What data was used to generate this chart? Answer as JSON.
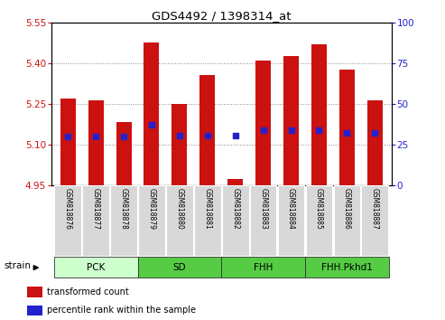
{
  "title": "GDS4492 / 1398314_at",
  "samples": [
    "GSM818876",
    "GSM818877",
    "GSM818878",
    "GSM818879",
    "GSM818880",
    "GSM818881",
    "GSM818882",
    "GSM818883",
    "GSM818884",
    "GSM818885",
    "GSM818886",
    "GSM818887"
  ],
  "red_values": [
    5.27,
    5.265,
    5.185,
    5.475,
    5.25,
    5.355,
    4.975,
    5.41,
    5.425,
    5.47,
    5.375,
    5.265
  ],
  "blue_values": [
    5.13,
    5.13,
    5.13,
    5.175,
    5.135,
    5.135,
    5.135,
    5.155,
    5.155,
    5.155,
    5.145,
    5.145
  ],
  "baseline": 4.95,
  "ylim_left": [
    4.95,
    5.55
  ],
  "ylim_right": [
    0,
    100
  ],
  "yticks_left": [
    4.95,
    5.1,
    5.25,
    5.4,
    5.55
  ],
  "yticks_right": [
    0,
    25,
    50,
    75,
    100
  ],
  "groups": [
    {
      "label": "PCK",
      "start": 0,
      "end": 3
    },
    {
      "label": "SD",
      "start": 3,
      "end": 6
    },
    {
      "label": "FHH",
      "start": 6,
      "end": 9
    },
    {
      "label": "FHH.Pkhd1",
      "start": 9,
      "end": 12
    }
  ],
  "group_colors": [
    "#ccffcc",
    "#55cc44",
    "#55cc44",
    "#55cc44"
  ],
  "red_color": "#cc1111",
  "blue_color": "#2222cc",
  "legend_red": "transformed count",
  "legend_blue": "percentile rank within the sample",
  "tick_label_color_left": "#cc1111",
  "tick_label_color_right": "#2222cc",
  "bar_width": 0.55,
  "blue_marker_size": 5,
  "bg_color": "#ffffff"
}
